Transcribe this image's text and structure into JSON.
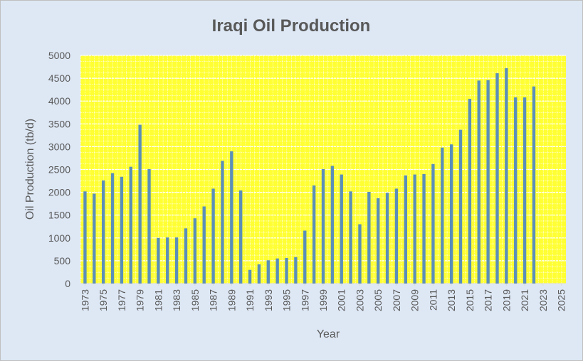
{
  "chart_data": {
    "type": "bar",
    "title": "Iraqi Oil Production",
    "x_label": "Year",
    "y_label": "Oil Production (tb/d)",
    "x": [
      1973,
      1974,
      1975,
      1976,
      1977,
      1978,
      1979,
      1980,
      1981,
      1982,
      1983,
      1984,
      1985,
      1986,
      1987,
      1988,
      1989,
      1990,
      1991,
      1992,
      1993,
      1994,
      1995,
      1996,
      1997,
      1998,
      1999,
      2000,
      2001,
      2002,
      2003,
      2004,
      2005,
      2006,
      2007,
      2008,
      2009,
      2010,
      2011,
      2012,
      2013,
      2014,
      2015,
      2016,
      2017,
      2018,
      2019,
      2020,
      2021,
      2022
    ],
    "values": [
      2020,
      1970,
      2260,
      2420,
      2340,
      2560,
      3480,
      2510,
      1000,
      1010,
      1010,
      1210,
      1430,
      1690,
      2080,
      2690,
      2900,
      2040,
      300,
      420,
      510,
      550,
      560,
      580,
      1160,
      2150,
      2510,
      2580,
      2390,
      2020,
      1300,
      2010,
      1870,
      1990,
      2080,
      2370,
      2390,
      2400,
      2620,
      2980,
      3050,
      3370,
      4050,
      4450,
      4460,
      4610,
      4720,
      4080,
      4080,
      4320
    ],
    "color": "#5b8fb9",
    "xlim": [
      1972.5,
      2025.5
    ],
    "xticks": [
      1973,
      1975,
      1977,
      1979,
      1981,
      1983,
      1985,
      1987,
      1989,
      1991,
      1993,
      1995,
      1997,
      1999,
      2001,
      2003,
      2005,
      2007,
      2009,
      2011,
      2013,
      2015,
      2017,
      2019,
      2021,
      2023,
      2025
    ],
    "ylim": [
      0,
      5000
    ],
    "yticks": [
      0,
      500,
      1000,
      1500,
      2000,
      2500,
      3000,
      3500,
      4000,
      4500,
      5000
    ],
    "grid": true
  }
}
